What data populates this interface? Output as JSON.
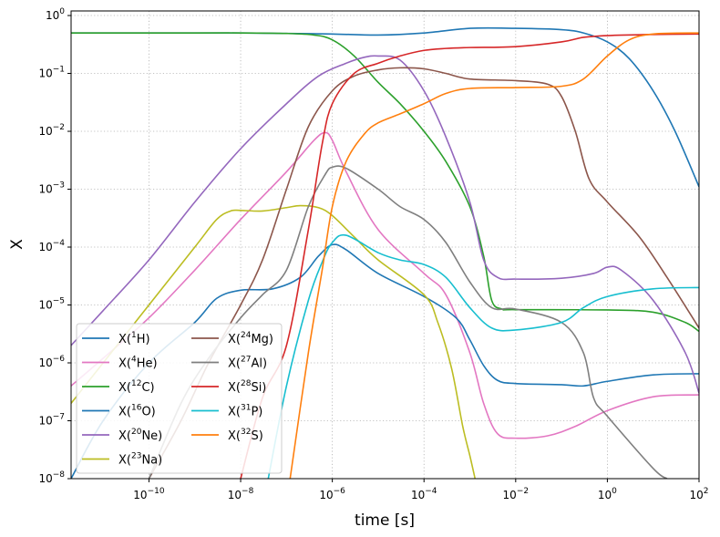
{
  "chart_data": {
    "type": "line",
    "xlabel": "time [s]",
    "ylabel": "X",
    "x_scale": "log",
    "y_scale": "log",
    "xlim": [
      2e-12,
      100
    ],
    "ylim": [
      1e-08,
      1.2
    ],
    "x_ticks": [
      {
        "value": 1e-10,
        "base": "10",
        "exp": "−10"
      },
      {
        "value": 1e-08,
        "base": "10",
        "exp": "−8"
      },
      {
        "value": 1e-06,
        "base": "10",
        "exp": "−6"
      },
      {
        "value": 0.0001,
        "base": "10",
        "exp": "−4"
      },
      {
        "value": 0.01,
        "base": "10",
        "exp": "−2"
      },
      {
        "value": 1,
        "base": "10",
        "exp": "0"
      },
      {
        "value": 100,
        "base": "10",
        "exp": "2"
      }
    ],
    "y_ticks": [
      {
        "value": 1e-08,
        "base": "10",
        "exp": "−8"
      },
      {
        "value": 1e-07,
        "base": "10",
        "exp": "−7"
      },
      {
        "value": 1e-06,
        "base": "10",
        "exp": "−6"
      },
      {
        "value": 1e-05,
        "base": "10",
        "exp": "−5"
      },
      {
        "value": 0.0001,
        "base": "10",
        "exp": "−4"
      },
      {
        "value": 0.001,
        "base": "10",
        "exp": "−3"
      },
      {
        "value": 0.01,
        "base": "10",
        "exp": "−2"
      },
      {
        "value": 0.1,
        "base": "10",
        "exp": "−1"
      },
      {
        "value": 1,
        "base": "10",
        "exp": "0"
      }
    ],
    "grid": true,
    "legend_position": "lower-left",
    "legend_columns": 2,
    "series": [
      {
        "name": "X(1H)",
        "label_pre": "X(",
        "label_sup": "1",
        "label_post": "H)",
        "color": "#1f77b4",
        "points": [
          [
            2e-12,
            0.5
          ],
          [
            1e-10,
            0.5
          ],
          [
            1e-08,
            0.5
          ],
          [
            1e-07,
            0.49
          ],
          [
            1e-06,
            0.48
          ],
          [
            1e-05,
            0.46
          ],
          [
            0.0001,
            0.5
          ],
          [
            0.001,
            0.6
          ],
          [
            0.01,
            0.6
          ],
          [
            0.1,
            0.57
          ],
          [
            0.3,
            0.5
          ],
          [
            1,
            0.35
          ],
          [
            3,
            0.18
          ],
          [
            10,
            0.05
          ],
          [
            30,
            0.01
          ],
          [
            100,
            0.0011
          ]
        ]
      },
      {
        "name": "X(4He)",
        "label_pre": "X(",
        "label_sup": "4",
        "label_post": "He)",
        "color": "#e377c2",
        "points": [
          [
            2e-12,
            4e-07
          ],
          [
            1e-11,
            1.2e-06
          ],
          [
            1e-10,
            6e-06
          ],
          [
            1e-09,
            4e-05
          ],
          [
            1e-08,
            0.0003
          ],
          [
            1e-07,
            0.002
          ],
          [
            4e-07,
            0.007
          ],
          [
            7e-07,
            0.0095
          ],
          [
            1e-06,
            0.007
          ],
          [
            2e-06,
            0.002
          ],
          [
            1e-05,
            0.0002
          ],
          [
            0.0001,
            3.5e-05
          ],
          [
            0.0003,
            1.5e-05
          ],
          [
            0.001,
            1.5e-06
          ],
          [
            0.002,
            2e-07
          ],
          [
            0.004,
            6e-08
          ],
          [
            0.01,
            5e-08
          ],
          [
            0.05,
            5.5e-08
          ],
          [
            0.2,
            8e-08
          ],
          [
            1,
            1.5e-07
          ],
          [
            10,
            2.6e-07
          ],
          [
            100,
            2.8e-07
          ]
        ]
      },
      {
        "name": "X(12C)",
        "label_pre": "X(",
        "label_sup": "12",
        "label_post": "C)",
        "color": "#2ca02c",
        "points": [
          [
            2e-12,
            0.5
          ],
          [
            1e-09,
            0.5
          ],
          [
            1e-08,
            0.5
          ],
          [
            1e-07,
            0.49
          ],
          [
            4e-07,
            0.46
          ],
          [
            1e-06,
            0.38
          ],
          [
            3e-06,
            0.2
          ],
          [
            1e-05,
            0.07
          ],
          [
            3e-05,
            0.03
          ],
          [
            0.0001,
            0.01
          ],
          [
            0.0003,
            0.003
          ],
          [
            0.001,
            0.0005
          ],
          [
            0.002,
            7e-05
          ],
          [
            0.003,
            1.2e-05
          ],
          [
            0.005,
            8.5e-06
          ],
          [
            0.01,
            8.3e-06
          ],
          [
            1,
            8.2e-06
          ],
          [
            10,
            7.5e-06
          ],
          [
            50,
            5e-06
          ],
          [
            100,
            3.5e-06
          ]
        ]
      },
      {
        "name": "X(16O)",
        "label_pre": "X(",
        "label_sup": "16",
        "label_post": "O)",
        "color": "#1f77b4",
        "points": [
          [
            2e-12,
            1e-08
          ],
          [
            1e-11,
            1e-07
          ],
          [
            1e-10,
            1e-06
          ],
          [
            1e-09,
            5e-06
          ],
          [
            3e-09,
            1.3e-05
          ],
          [
            1e-08,
            1.8e-05
          ],
          [
            5e-08,
            1.9e-05
          ],
          [
            2e-07,
            3e-05
          ],
          [
            5e-07,
            7e-05
          ],
          [
            1e-06,
            0.00011
          ],
          [
            2e-06,
            9e-05
          ],
          [
            1e-05,
            3.5e-05
          ],
          [
            0.0001,
            1.4e-05
          ],
          [
            0.0005,
            6e-06
          ],
          [
            0.001,
            2.5e-06
          ],
          [
            0.002,
            9e-07
          ],
          [
            0.004,
            5e-07
          ],
          [
            0.01,
            4.4e-07
          ],
          [
            0.1,
            4.2e-07
          ],
          [
            0.3,
            4e-07
          ],
          [
            1,
            4.8e-07
          ],
          [
            10,
            6.2e-07
          ],
          [
            100,
            6.5e-07
          ]
        ]
      },
      {
        "name": "X(20Ne)",
        "label_pre": "X(",
        "label_sup": "20",
        "label_post": "Ne)",
        "color": "#9467bd",
        "points": [
          [
            2e-12,
            2e-06
          ],
          [
            1e-11,
            8e-06
          ],
          [
            1e-10,
            6e-05
          ],
          [
            1e-09,
            0.0006
          ],
          [
            1e-08,
            0.005
          ],
          [
            1e-07,
            0.03
          ],
          [
            5e-07,
            0.09
          ],
          [
            2e-06,
            0.15
          ],
          [
            5e-06,
            0.19
          ],
          [
            1e-05,
            0.2
          ],
          [
            3e-05,
            0.17
          ],
          [
            0.0001,
            0.05
          ],
          [
            0.0003,
            0.008
          ],
          [
            0.001,
            0.0006
          ],
          [
            0.002,
            6e-05
          ],
          [
            0.004,
            3e-05
          ],
          [
            0.01,
            2.8e-05
          ],
          [
            0.1,
            2.9e-05
          ],
          [
            0.5,
            3.5e-05
          ],
          [
            1,
            4.5e-05
          ],
          [
            2,
            4e-05
          ],
          [
            10,
            1.2e-05
          ],
          [
            50,
            1.5e-06
          ],
          [
            100,
            3e-07
          ]
        ]
      },
      {
        "name": "X(23Na)",
        "label_pre": "X(",
        "label_sup": "23",
        "label_post": "Na)",
        "color": "#bcbd22",
        "points": [
          [
            2e-12,
            2e-07
          ],
          [
            1e-11,
            1e-06
          ],
          [
            1e-10,
            1e-05
          ],
          [
            1e-09,
            0.0001
          ],
          [
            3e-09,
            0.0003
          ],
          [
            6e-09,
            0.00042
          ],
          [
            1e-08,
            0.00043
          ],
          [
            3e-08,
            0.00042
          ],
          [
            1e-07,
            0.00048
          ],
          [
            2e-07,
            0.00052
          ],
          [
            5e-07,
            0.00048
          ],
          [
            1e-06,
            0.00035
          ],
          [
            3e-06,
            0.00015
          ],
          [
            1e-05,
            6e-05
          ],
          [
            0.0001,
            1.5e-05
          ],
          [
            0.0002,
            5e-06
          ],
          [
            0.0004,
            8e-07
          ],
          [
            0.0007,
            8e-08
          ],
          [
            0.001,
            2.5e-08
          ],
          [
            0.0013,
            1e-08
          ]
        ]
      },
      {
        "name": "X(24Mg)",
        "label_pre": "X(",
        "label_sup": "24",
        "label_post": "Mg)",
        "color": "#8c564b",
        "points": [
          [
            1e-10,
            1e-08
          ],
          [
            5e-10,
            1e-07
          ],
          [
            2e-09,
            1e-06
          ],
          [
            1e-08,
            1e-05
          ],
          [
            3e-08,
            6e-05
          ],
          [
            1e-07,
            0.001
          ],
          [
            3e-07,
            0.012
          ],
          [
            1e-06,
            0.05
          ],
          [
            3e-06,
            0.09
          ],
          [
            1e-05,
            0.115
          ],
          [
            3e-05,
            0.125
          ],
          [
            0.0001,
            0.12
          ],
          [
            0.0003,
            0.1
          ],
          [
            0.001,
            0.08
          ],
          [
            0.01,
            0.075
          ],
          [
            0.05,
            0.065
          ],
          [
            0.1,
            0.04
          ],
          [
            0.2,
            0.01
          ],
          [
            0.4,
            0.0015
          ],
          [
            1,
            0.0006
          ],
          [
            5,
            0.00015
          ],
          [
            20,
            3e-05
          ],
          [
            100,
            4e-06
          ]
        ]
      },
      {
        "name": "X(27Al)",
        "label_pre": "X(",
        "label_sup": "27",
        "label_post": "Al)",
        "color": "#7f7f7f",
        "points": [
          [
            1e-10,
            1e-08
          ],
          [
            5e-10,
            2e-07
          ],
          [
            2e-09,
            1.2e-06
          ],
          [
            1e-08,
            6e-06
          ],
          [
            3e-08,
            1.5e-05
          ],
          [
            1e-07,
            4e-05
          ],
          [
            3e-07,
            0.0005
          ],
          [
            7e-07,
            0.0018
          ],
          [
            1e-06,
            0.0024
          ],
          [
            2e-06,
            0.0023
          ],
          [
            1e-05,
            0.001
          ],
          [
            3e-05,
            0.0005
          ],
          [
            0.0001,
            0.0003
          ],
          [
            0.0003,
            0.00012
          ],
          [
            0.001,
            2.5e-05
          ],
          [
            0.003,
            9e-06
          ],
          [
            0.01,
            8.5e-06
          ],
          [
            0.1,
            5e-06
          ],
          [
            0.3,
            1.5e-06
          ],
          [
            0.5,
            2.5e-07
          ],
          [
            1,
            1.2e-07
          ],
          [
            10,
            1.5e-08
          ],
          [
            20,
            1e-08
          ]
        ]
      },
      {
        "name": "X(28Si)",
        "label_pre": "X(",
        "label_sup": "28",
        "label_post": "Si)",
        "color": "#d62728",
        "points": [
          [
            1e-08,
            1e-08
          ],
          [
            3e-08,
            2.5e-07
          ],
          [
            1e-07,
            2e-06
          ],
          [
            3e-07,
            0.0002
          ],
          [
            6e-07,
            0.006
          ],
          [
            1e-06,
            0.03
          ],
          [
            3e-06,
            0.1
          ],
          [
            1e-05,
            0.15
          ],
          [
            3e-05,
            0.2
          ],
          [
            0.0001,
            0.25
          ],
          [
            0.0003,
            0.27
          ],
          [
            0.001,
            0.28
          ],
          [
            0.01,
            0.29
          ],
          [
            0.1,
            0.35
          ],
          [
            0.3,
            0.42
          ],
          [
            1,
            0.45
          ],
          [
            10,
            0.47
          ],
          [
            100,
            0.48
          ]
        ]
      },
      {
        "name": "X(31P)",
        "label_pre": "X(",
        "label_sup": "31",
        "label_post": "P)",
        "color": "#17becf",
        "points": [
          [
            4e-08,
            1e-08
          ],
          [
            1e-07,
            4e-07
          ],
          [
            3e-07,
            1.2e-05
          ],
          [
            6e-07,
            5.5e-05
          ],
          [
            1e-06,
            0.00012
          ],
          [
            2e-06,
            0.00016
          ],
          [
            1e-05,
            8e-05
          ],
          [
            3e-05,
            6e-05
          ],
          [
            0.0001,
            5e-05
          ],
          [
            0.0003,
            3e-05
          ],
          [
            0.001,
            9e-06
          ],
          [
            0.003,
            4e-06
          ],
          [
            0.01,
            3.7e-06
          ],
          [
            0.1,
            5e-06
          ],
          [
            0.3,
            9e-06
          ],
          [
            1,
            1.4e-05
          ],
          [
            10,
            1.9e-05
          ],
          [
            100,
            2e-05
          ]
        ]
      },
      {
        "name": "X(32S)",
        "label_pre": "X(",
        "label_sup": "32",
        "label_post": "S)",
        "color": "#ff7f0e",
        "points": [
          [
            1.2e-07,
            1e-08
          ],
          [
            3e-07,
            1.5e-06
          ],
          [
            6e-07,
            4e-05
          ],
          [
            1e-06,
            0.0005
          ],
          [
            2e-06,
            0.003
          ],
          [
            5e-06,
            0.009
          ],
          [
            1e-05,
            0.014
          ],
          [
            3e-05,
            0.02
          ],
          [
            0.0001,
            0.03
          ],
          [
            0.0003,
            0.045
          ],
          [
            0.001,
            0.055
          ],
          [
            0.01,
            0.057
          ],
          [
            0.1,
            0.06
          ],
          [
            0.3,
            0.08
          ],
          [
            1,
            0.2
          ],
          [
            3,
            0.38
          ],
          [
            10,
            0.48
          ],
          [
            100,
            0.5
          ]
        ]
      }
    ]
  }
}
